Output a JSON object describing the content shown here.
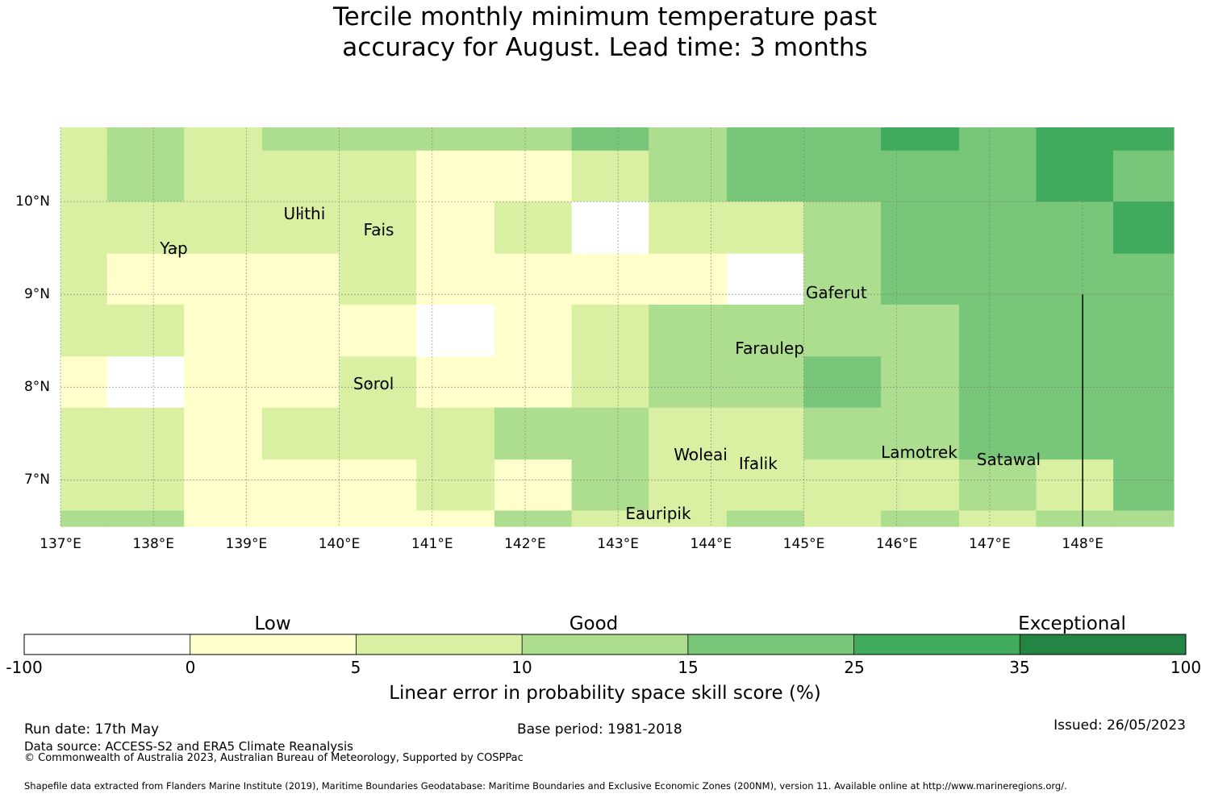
{
  "title_line1": "Tercile monthly minimum temperature past",
  "title_line2": "accuracy for August. Lead time: 3 months",
  "map": {
    "lon_range": [
      137.0,
      148.98
    ],
    "lat_range": [
      6.5,
      10.8
    ],
    "lon_ticks": [
      {
        "value": 137,
        "label": "137°E"
      },
      {
        "value": 138,
        "label": "138°E"
      },
      {
        "value": 139,
        "label": "139°E"
      },
      {
        "value": 140,
        "label": "140°E"
      },
      {
        "value": 141,
        "label": "141°E"
      },
      {
        "value": 142,
        "label": "142°E"
      },
      {
        "value": 143,
        "label": "143°E"
      },
      {
        "value": 144,
        "label": "144°E"
      },
      {
        "value": 145,
        "label": "145°E"
      },
      {
        "value": 146,
        "label": "146°E"
      },
      {
        "value": 147,
        "label": "147°E"
      },
      {
        "value": 148,
        "label": "148°E"
      }
    ],
    "lat_ticks": [
      {
        "value": 10,
        "label": "10°N"
      },
      {
        "value": 9,
        "label": "9°N"
      },
      {
        "value": 8,
        "label": "8°N"
      },
      {
        "value": 7,
        "label": "7°N"
      }
    ],
    "grid_lines": true,
    "boundary_lon": 148.0,
    "boundary_lat_range": [
      6.5,
      9.0
    ],
    "cell_lon_edges": [
      137.0,
      137.5,
      138.33,
      139.17,
      140.0,
      140.83,
      141.67,
      142.5,
      143.33,
      144.17,
      145.0,
      145.83,
      146.67,
      147.5,
      148.33,
      148.98
    ],
    "cell_lat_edges": [
      10.8,
      10.55,
      10.0,
      9.44,
      8.89,
      8.33,
      7.78,
      7.22,
      6.67,
      6.5
    ],
    "cell_classes": [
      [
        2,
        3,
        2,
        3,
        3,
        3,
        3,
        4,
        3,
        4,
        4,
        5,
        4,
        5,
        5
      ],
      [
        2,
        3,
        2,
        2,
        2,
        1,
        1,
        2,
        3,
        4,
        4,
        4,
        4,
        5,
        4
      ],
      [
        2,
        2,
        2,
        2,
        2,
        1,
        2,
        0,
        2,
        2,
        3,
        4,
        4,
        4,
        5
      ],
      [
        2,
        1,
        1,
        1,
        2,
        1,
        1,
        1,
        1,
        0,
        3,
        4,
        4,
        4,
        4
      ],
      [
        2,
        2,
        1,
        1,
        1,
        0,
        1,
        2,
        3,
        3,
        3,
        3,
        4,
        4,
        4
      ],
      [
        1,
        0,
        1,
        1,
        2,
        1,
        1,
        2,
        3,
        3,
        4,
        3,
        4,
        4,
        4
      ],
      [
        2,
        2,
        1,
        2,
        2,
        2,
        3,
        3,
        2,
        2,
        3,
        3,
        4,
        4,
        4
      ],
      [
        2,
        2,
        1,
        1,
        1,
        2,
        1,
        3,
        2,
        2,
        2,
        2,
        3,
        2,
        4
      ],
      [
        3,
        3,
        1,
        1,
        1,
        1,
        3,
        2,
        2,
        3,
        2,
        3,
        2,
        3,
        3
      ]
    ],
    "places": [
      {
        "name": "Ulithi",
        "lon": 139.4,
        "lat": 9.85
      },
      {
        "name": "Fais",
        "lon": 140.26,
        "lat": 9.68
      },
      {
        "name": "Yap",
        "lon": 138.07,
        "lat": 9.48
      },
      {
        "name": "Gaferut",
        "lon": 145.02,
        "lat": 9.0
      },
      {
        "name": "Faraulep",
        "lon": 144.26,
        "lat": 8.4
      },
      {
        "name": "Sorol",
        "lon": 140.15,
        "lat": 8.02
      },
      {
        "name": "Lamotrek",
        "lon": 145.83,
        "lat": 7.28
      },
      {
        "name": "Woleai",
        "lon": 143.6,
        "lat": 7.26
      },
      {
        "name": "Satawal",
        "lon": 146.86,
        "lat": 7.2
      },
      {
        "name": "Ifalik",
        "lon": 144.3,
        "lat": 7.16
      },
      {
        "name": "Eauripik",
        "lon": 143.08,
        "lat": 6.62
      }
    ]
  },
  "colorbar": {
    "colors": [
      "#ffffff",
      "#ffffcc",
      "#d9f0a3",
      "#addd8e",
      "#78c679",
      "#41ab5d",
      "#238443"
    ],
    "ticks": [
      "-100",
      "0",
      "5",
      "10",
      "15",
      "25",
      "35",
      "100"
    ],
    "categories": [
      "Low",
      "Good",
      "Exceptional"
    ],
    "label": "Linear error in probability space skill score (%)"
  },
  "footer": {
    "run_date": "Run date: 17th May",
    "base_period": "Base period: 1981-2018",
    "issued": "Issued: 26/05/2023",
    "data_source": "Data source: ACCESS-S2 and ERA5 Climate Reanalysis",
    "copyright": "© Commonwealth of Australia 2023, Australian Bureau of Meteorology, Supported by COSPPac",
    "shapefile_note": "Shapefile data extracted from Flanders Marine Institute (2019), Maritime Boundaries Geodatabase: Maritime Boundaries and Exclusive Economic Zones (200NM), version 11. Available online at http://www.marineregions.org/."
  }
}
